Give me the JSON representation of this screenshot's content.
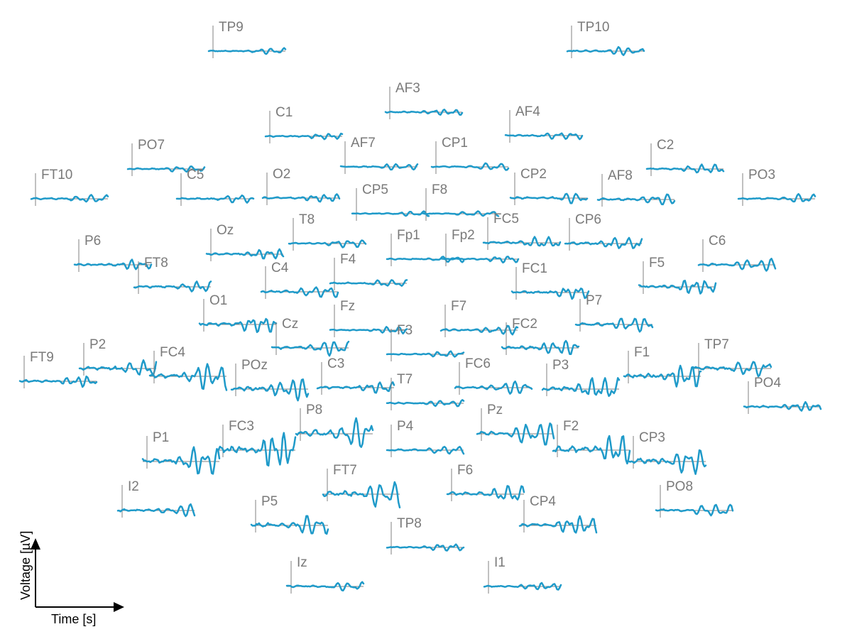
{
  "chart_data": {
    "type": "line",
    "title": "",
    "xlabel": "Time [s]",
    "ylabel": "Voltage [µV]",
    "trace_color": "#1f9ac9",
    "axis_color": "#808080",
    "label_color": "#7a7a7a",
    "waveform_amplitude_scale": {
      "min": 0.25,
      "max": 1.8
    },
    "channels": [
      {
        "name": "TP9",
        "amp": 0.3
      },
      {
        "name": "TP10",
        "amp": 0.4
      },
      {
        "name": "AF3",
        "amp": 0.3
      },
      {
        "name": "C1",
        "amp": 0.3
      },
      {
        "name": "AF4",
        "amp": 0.35
      },
      {
        "name": "PO7",
        "amp": 0.3
      },
      {
        "name": "AF7",
        "amp": 0.3
      },
      {
        "name": "CP1",
        "amp": 0.35
      },
      {
        "name": "C2",
        "amp": 0.45
      },
      {
        "name": "FT10",
        "amp": 0.4
      },
      {
        "name": "C5",
        "amp": 0.4
      },
      {
        "name": "O2",
        "amp": 0.4
      },
      {
        "name": "CP2",
        "amp": 0.55
      },
      {
        "name": "AF8",
        "amp": 0.55
      },
      {
        "name": "PO3",
        "amp": 0.45
      },
      {
        "name": "CP5",
        "amp": 0.25
      },
      {
        "name": "F8",
        "amp": 0.25
      },
      {
        "name": "T8",
        "amp": 0.4
      },
      {
        "name": "FC5",
        "amp": 0.55
      },
      {
        "name": "CP6",
        "amp": 0.6
      },
      {
        "name": "Oz",
        "amp": 0.5
      },
      {
        "name": "P6",
        "amp": 0.5
      },
      {
        "name": "Fp1",
        "amp": 0.3
      },
      {
        "name": "Fp2",
        "amp": 0.35
      },
      {
        "name": "C6",
        "amp": 0.6
      },
      {
        "name": "FT8",
        "amp": 0.55
      },
      {
        "name": "F4",
        "amp": 0.35
      },
      {
        "name": "C4",
        "amp": 0.55
      },
      {
        "name": "FC1",
        "amp": 0.6
      },
      {
        "name": "F5",
        "amp": 0.75
      },
      {
        "name": "O1",
        "amp": 0.8
      },
      {
        "name": "P7",
        "amp": 0.75
      },
      {
        "name": "Fz",
        "amp": 0.35
      },
      {
        "name": "F7",
        "amp": 0.45
      },
      {
        "name": "Cz",
        "amp": 0.75
      },
      {
        "name": "FC2",
        "amp": 0.75
      },
      {
        "name": "F3",
        "amp": 0.3
      },
      {
        "name": "FT9",
        "amp": 0.55
      },
      {
        "name": "P2",
        "amp": 0.85
      },
      {
        "name": "FC4",
        "amp": 1.3
      },
      {
        "name": "F1",
        "amp": 1.15
      },
      {
        "name": "TP7",
        "amp": 0.8
      },
      {
        "name": "POz",
        "amp": 1.1
      },
      {
        "name": "C3",
        "amp": 0.6
      },
      {
        "name": "FC6",
        "amp": 0.65
      },
      {
        "name": "P3",
        "amp": 1.1
      },
      {
        "name": "T7",
        "amp": 0.35
      },
      {
        "name": "PO4",
        "amp": 0.45
      },
      {
        "name": "P8",
        "amp": 1.6
      },
      {
        "name": "Pz",
        "amp": 1.2
      },
      {
        "name": "P1",
        "amp": 1.4
      },
      {
        "name": "FC3",
        "amp": 1.8
      },
      {
        "name": "P4",
        "amp": 0.4
      },
      {
        "name": "F2",
        "amp": 1.5
      },
      {
        "name": "CP3",
        "amp": 1.3
      },
      {
        "name": "FT7",
        "amp": 1.35
      },
      {
        "name": "F6",
        "amp": 0.85
      },
      {
        "name": "I2",
        "amp": 0.6
      },
      {
        "name": "PO8",
        "amp": 0.6
      },
      {
        "name": "P5",
        "amp": 1.0
      },
      {
        "name": "CP4",
        "amp": 0.9
      },
      {
        "name": "TP8",
        "amp": 0.35
      },
      {
        "name": "Iz",
        "amp": 0.45
      },
      {
        "name": "I1",
        "amp": 0.35
      }
    ]
  }
}
